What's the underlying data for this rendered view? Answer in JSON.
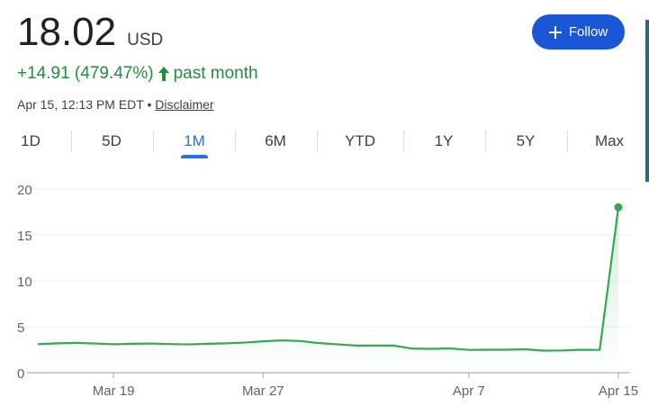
{
  "quote": {
    "price": "18.02",
    "currency": "USD",
    "change": "+14.91 (479.47%)",
    "period": "past month",
    "timestamp": "Apr 15, 12:13 PM EDT",
    "separator": "•",
    "disclaimer": "Disclaimer"
  },
  "follow_button": {
    "icon": "plus-icon",
    "label": "Follow"
  },
  "tabs": [
    {
      "label": "1D",
      "active": false
    },
    {
      "label": "5D",
      "active": false
    },
    {
      "label": "1M",
      "active": true
    },
    {
      "label": "6M",
      "active": false
    },
    {
      "label": "YTD",
      "active": false
    },
    {
      "label": "1Y",
      "active": false
    },
    {
      "label": "5Y",
      "active": false
    },
    {
      "label": "Max",
      "active": false
    }
  ],
  "colors": {
    "positive": "#1e8e3e",
    "line": "#34a853",
    "accent": "#1a73e8",
    "follow": "#1a57d6"
  },
  "chart_data": {
    "type": "line",
    "x": [
      "Mar 15",
      "Mar 16",
      "Mar 17",
      "Mar 18",
      "Mar 19",
      "Mar 20",
      "Mar 21",
      "Mar 22",
      "Mar 23",
      "Mar 24",
      "Mar 25",
      "Mar 26",
      "Mar 27",
      "Mar 28",
      "Mar 29",
      "Mar 30",
      "Mar 31",
      "Apr 1",
      "Apr 2",
      "Apr 3",
      "Apr 4",
      "Apr 5",
      "Apr 6",
      "Apr 7",
      "Apr 8",
      "Apr 9",
      "Apr 10",
      "Apr 11",
      "Apr 12",
      "Apr 13",
      "Apr 14",
      "Apr 15"
    ],
    "values": [
      3.11,
      3.2,
      3.25,
      3.18,
      3.1,
      3.15,
      3.18,
      3.12,
      3.08,
      3.15,
      3.2,
      3.28,
      3.42,
      3.52,
      3.45,
      3.22,
      3.08,
      2.95,
      2.96,
      2.95,
      2.62,
      2.6,
      2.64,
      2.48,
      2.5,
      2.5,
      2.55,
      2.4,
      2.42,
      2.5,
      2.48,
      18.02
    ],
    "xticks": [
      "Mar 19",
      "Mar 27",
      "Apr 7",
      "Apr 15"
    ],
    "yticks": [
      0,
      5,
      10,
      15,
      20
    ],
    "ylim": [
      0,
      20
    ],
    "grid": true
  }
}
